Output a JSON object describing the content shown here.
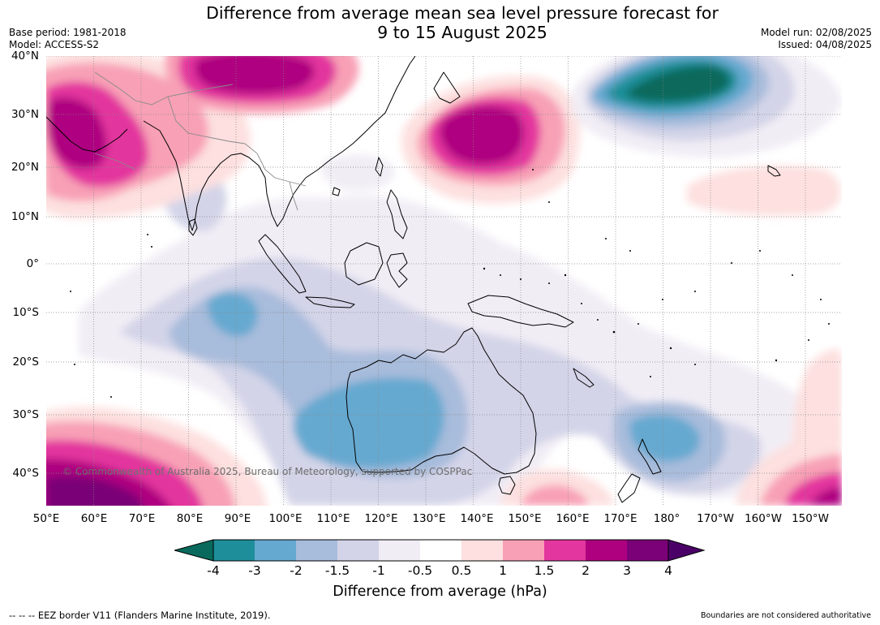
{
  "header": {
    "title_line1": "Difference from average mean sea level pressure forecast for",
    "title_line2": "9 to 15 August 2025",
    "base_period": "Base period: 1981-2018",
    "model": "Model: ACCESS-S2",
    "model_run": "Model run: 02/08/2025",
    "issued": "Issued: 04/08/2025"
  },
  "map": {
    "latitude_labels": [
      "40°N",
      "30°N",
      "20°N",
      "10°N",
      "0°",
      "10°S",
      "20°S",
      "30°S",
      "40°S"
    ],
    "longitude_labels": [
      "50°E",
      "60°E",
      "70°E",
      "80°E",
      "90°E",
      "100°E",
      "110°E",
      "120°E",
      "130°E",
      "140°E",
      "150°E",
      "160°E",
      "170°E",
      "180°",
      "170°W",
      "160°W",
      "150°W"
    ],
    "copyright": "© Commonwealth of Australia 2025, Bureau of Meteorology, supported by COSPPac",
    "land_outline_color": "#000000",
    "grid_color": "#888888"
  },
  "colorbar": {
    "tick_labels": [
      "-4",
      "-3",
      "-2",
      "-1.5",
      "-1",
      "-0.5",
      "0.5",
      "1",
      "1.5",
      "2",
      "3",
      "4"
    ],
    "colors": [
      "#08695c",
      "#1e8f9a",
      "#66a9d0",
      "#a8bcdb",
      "#d3d4e8",
      "#f1edf5",
      "#ffffff",
      "#fde0df",
      "#f8a0b6",
      "#e3369e",
      "#ae0180",
      "#7a0177",
      "#4b0067"
    ],
    "title": "Difference from average (hPa)"
  },
  "footer": {
    "eez_note": "--  --  -- EEZ border V11 (Flanders Marine Institute, 2019).",
    "boundaries_note": "Boundaries are not considered authoritative"
  }
}
